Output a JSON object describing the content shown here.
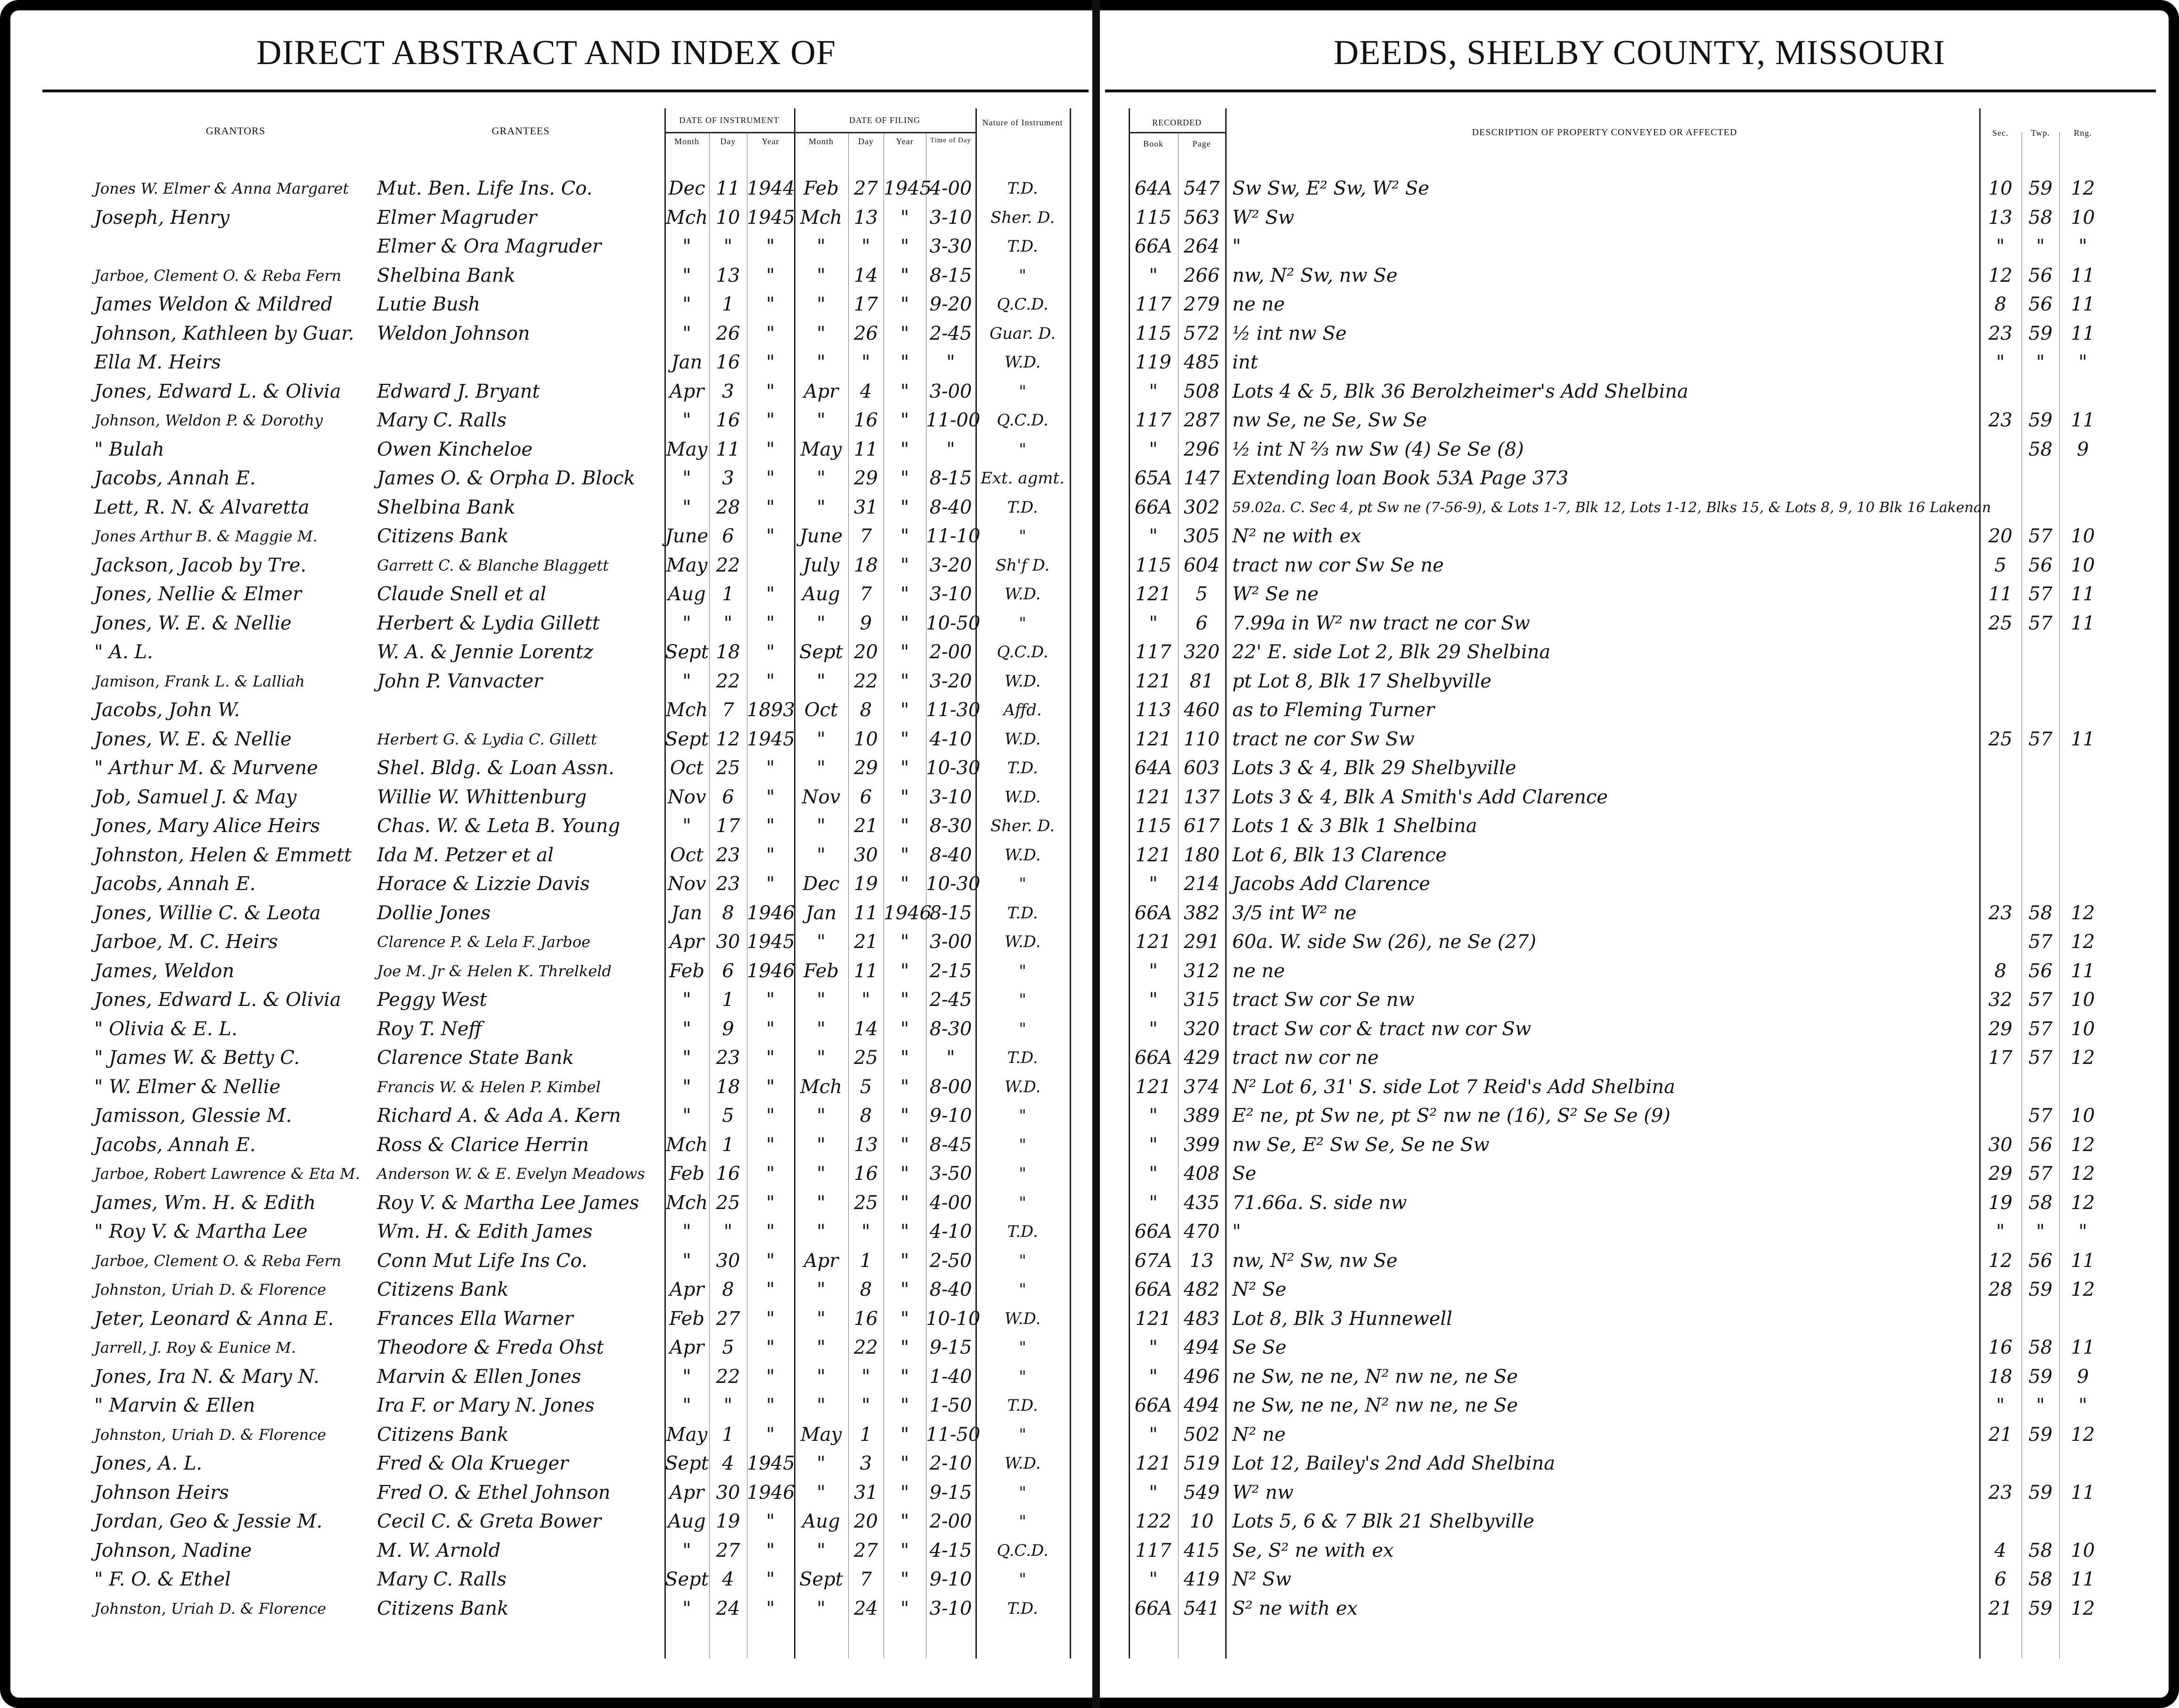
{
  "header": {
    "left_title": "DIRECT ABSTRACT AND INDEX OF",
    "right_title": "DEEDS, SHELBY COUNTY, MISSOURI"
  },
  "columns": {
    "grantors": "GRANTORS",
    "grantees": "GRANTEES",
    "date_of_instrument": "DATE OF INSTRUMENT",
    "date_of_filing": "DATE OF FILING",
    "month": "Month",
    "day": "Day",
    "year": "Year",
    "time_of_day": "Time of Day",
    "nature": "Nature of Instrument",
    "recorded": "RECORDED",
    "book": "Book",
    "page": "Page",
    "description": "DESCRIPTION OF PROPERTY CONVEYED OR AFFECTED",
    "sec": "Sec.",
    "twp": "Twp.",
    "rng": "Rng."
  },
  "rows": [
    [
      "Jones W. Elmer & Anna Margaret",
      "Mut. Ben. Life Ins. Co.",
      "Dec",
      "11",
      "1944",
      "Feb",
      "27",
      "1945",
      "4-00",
      "T.D.",
      "64A",
      "547",
      "Sw Sw, E² Sw, W² Se",
      "10",
      "59",
      "12"
    ],
    [
      "Joseph, Henry",
      "Elmer Magruder",
      "Mch",
      "10",
      "1945",
      "Mch",
      "13",
      "\"",
      "3-10",
      "Sher. D.",
      "115",
      "563",
      "W² Sw",
      "13",
      "58",
      "10"
    ],
    [
      "",
      "Elmer & Ora Magruder",
      "\"",
      "\"",
      "\"",
      "\"",
      "\"",
      "\"",
      "3-30",
      "T.D.",
      "66A",
      "264",
      "\"",
      "\"",
      "\"",
      "\""
    ],
    [
      "Jarboe, Clement O. & Reba Fern",
      "Shelbina Bank",
      "\"",
      "13",
      "\"",
      "\"",
      "14",
      "\"",
      "8-15",
      "\"",
      "\"",
      "266",
      "nw, N² Sw, nw Se",
      "12",
      "56",
      "11"
    ],
    [
      "James Weldon & Mildred",
      "Lutie Bush",
      "\"",
      "1",
      "\"",
      "\"",
      "17",
      "\"",
      "9-20",
      "Q.C.D.",
      "117",
      "279",
      "ne ne",
      "8",
      "56",
      "11"
    ],
    [
      "Johnson, Kathleen by Guar.",
      "Weldon Johnson",
      "\"",
      "26",
      "\"",
      "\"",
      "26",
      "\"",
      "2-45",
      "Guar. D.",
      "115",
      "572",
      "½ int nw Se",
      "23",
      "59",
      "11"
    ],
    [
      "Ella M. Heirs",
      "",
      "Jan",
      "16",
      "\"",
      "\"",
      "\"",
      "\"",
      "\"",
      "W.D.",
      "119",
      "485",
      "int",
      "\"",
      "\"",
      "\""
    ],
    [
      "Jones, Edward L. & Olivia",
      "Edward J. Bryant",
      "Apr",
      "3",
      "\"",
      "Apr",
      "4",
      "\"",
      "3-00",
      "\"",
      "\"",
      "508",
      "Lots 4 & 5, Blk 36 Berolzheimer's Add Shelbina",
      "",
      "",
      ""
    ],
    [
      "Johnson, Weldon P. & Dorothy",
      "Mary C. Ralls",
      "\"",
      "16",
      "\"",
      "\"",
      "16",
      "\"",
      "11-00",
      "Q.C.D.",
      "117",
      "287",
      "nw Se, ne Se, Sw Se",
      "23",
      "59",
      "11"
    ],
    [
      "\" Bulah",
      "Owen Kincheloe",
      "May",
      "11",
      "\"",
      "May",
      "11",
      "\"",
      "\"",
      "\"",
      "\"",
      "296",
      "½ int N ⅔ nw Sw (4) Se Se (8)",
      "",
      "58",
      "9"
    ],
    [
      "Jacobs, Annah E.",
      "James O. & Orpha D. Block",
      "\"",
      "3",
      "\"",
      "\"",
      "29",
      "\"",
      "8-15",
      "Ext. agmt.",
      "65A",
      "147",
      "Extending loan Book 53A Page 373",
      "",
      "",
      ""
    ],
    [
      "Lett, R. N. & Alvaretta",
      "Shelbina Bank",
      "\"",
      "28",
      "\"",
      "\"",
      "31",
      "\"",
      "8-40",
      "T.D.",
      "66A",
      "302",
      "59.02a. C. Sec 4, pt Sw ne (7-56-9), & Lots 1-7, Blk 12, Lots 1-12, Blks 15, & Lots 8, 9, 10 Blk 16 Lakenan",
      "",
      "",
      ""
    ],
    [
      "Jones Arthur B. & Maggie M.",
      "Citizens Bank",
      "June",
      "6",
      "\"",
      "June",
      "7",
      "\"",
      "11-10",
      "\"",
      "\"",
      "305",
      "N² ne with ex",
      "20",
      "57",
      "10"
    ],
    [
      "Jackson, Jacob by Tre.",
      "Garrett C. & Blanche Blaggett",
      "May",
      "22",
      "",
      "July",
      "18",
      "\"",
      "3-20",
      "Sh'f D.",
      "115",
      "604",
      "tract nw cor Sw Se ne",
      "5",
      "56",
      "10"
    ],
    [
      "Jones, Nellie & Elmer",
      "Claude Snell et al",
      "Aug",
      "1",
      "\"",
      "Aug",
      "7",
      "\"",
      "3-10",
      "W.D.",
      "121",
      "5",
      "W² Se ne",
      "11",
      "57",
      "11"
    ],
    [
      "Jones, W. E. & Nellie",
      "Herbert & Lydia Gillett",
      "\"",
      "\"",
      "\"",
      "\"",
      "9",
      "\"",
      "10-50",
      "\"",
      "\"",
      "6",
      "7.99a in W² nw tract ne cor Sw",
      "25",
      "57",
      "11"
    ],
    [
      "\" A. L.",
      "W. A. & Jennie Lorentz",
      "Sept",
      "18",
      "\"",
      "Sept",
      "20",
      "\"",
      "2-00",
      "Q.C.D.",
      "117",
      "320",
      "22' E. side Lot 2, Blk 29 Shelbina",
      "",
      "",
      ""
    ],
    [
      "Jamison, Frank L. & Lalliah",
      "John P. Vanvacter",
      "\"",
      "22",
      "\"",
      "\"",
      "22",
      "\"",
      "3-20",
      "W.D.",
      "121",
      "81",
      "pt Lot 8, Blk 17 Shelbyville",
      "",
      "",
      ""
    ],
    [
      "Jacobs, John W.",
      "",
      "Mch",
      "7",
      "1893",
      "Oct",
      "8",
      "\"",
      "11-30",
      "Affd.",
      "113",
      "460",
      "as to Fleming Turner",
      "",
      "",
      ""
    ],
    [
      "Jones, W. E. & Nellie",
      "Herbert G. & Lydia C. Gillett",
      "Sept",
      "12",
      "1945",
      "\"",
      "10",
      "\"",
      "4-10",
      "W.D.",
      "121",
      "110",
      "tract ne cor Sw Sw",
      "25",
      "57",
      "11"
    ],
    [
      "\" Arthur M. & Murvene",
      "Shel. Bldg. & Loan Assn.",
      "Oct",
      "25",
      "\"",
      "\"",
      "29",
      "\"",
      "10-30",
      "T.D.",
      "64A",
      "603",
      "Lots 3 & 4, Blk 29 Shelbyville",
      "",
      "",
      ""
    ],
    [
      "Job, Samuel J. & May",
      "Willie W. Whittenburg",
      "Nov",
      "6",
      "\"",
      "Nov",
      "6",
      "\"",
      "3-10",
      "W.D.",
      "121",
      "137",
      "Lots 3 & 4, Blk A Smith's Add Clarence",
      "",
      "",
      ""
    ],
    [
      "Jones, Mary Alice Heirs",
      "Chas. W. & Leta B. Young",
      "\"",
      "17",
      "\"",
      "\"",
      "21",
      "\"",
      "8-30",
      "Sher. D.",
      "115",
      "617",
      "Lots 1 & 3 Blk 1 Shelbina",
      "",
      "",
      ""
    ],
    [
      "Johnston, Helen & Emmett",
      "Ida M. Petzer et al",
      "Oct",
      "23",
      "\"",
      "\"",
      "30",
      "\"",
      "8-40",
      "W.D.",
      "121",
      "180",
      "Lot 6, Blk 13 Clarence",
      "",
      "",
      ""
    ],
    [
      "Jacobs, Annah E.",
      "Horace & Lizzie Davis",
      "Nov",
      "23",
      "\"",
      "Dec",
      "19",
      "\"",
      "10-30",
      "\"",
      "\"",
      "214",
      "Jacobs Add Clarence",
      "",
      "",
      ""
    ],
    [
      "Jones, Willie C. & Leota",
      "Dollie Jones",
      "Jan",
      "8",
      "1946",
      "Jan",
      "11",
      "1946",
      "8-15",
      "T.D.",
      "66A",
      "382",
      "3/5 int W² ne",
      "23",
      "58",
      "12"
    ],
    [
      "Jarboe, M. C. Heirs",
      "Clarence P. & Lela F. Jarboe",
      "Apr",
      "30",
      "1945",
      "\"",
      "21",
      "\"",
      "3-00",
      "W.D.",
      "121",
      "291",
      "60a. W. side Sw (26), ne Se (27)",
      "",
      "57",
      "12"
    ],
    [
      "James, Weldon",
      "Joe M. Jr & Helen K. Threlkeld",
      "Feb",
      "6",
      "1946",
      "Feb",
      "11",
      "\"",
      "2-15",
      "\"",
      "\"",
      "312",
      "ne ne",
      "8",
      "56",
      "11"
    ],
    [
      "Jones, Edward L. & Olivia",
      "Peggy West",
      "\"",
      "1",
      "\"",
      "\"",
      "\"",
      "\"",
      "2-45",
      "\"",
      "\"",
      "315",
      "tract Sw cor Se nw",
      "32",
      "57",
      "10"
    ],
    [
      "\" Olivia & E. L.",
      "Roy T. Neff",
      "\"",
      "9",
      "\"",
      "\"",
      "14",
      "\"",
      "8-30",
      "\"",
      "\"",
      "320",
      "tract Sw cor & tract nw cor Sw",
      "29",
      "57",
      "10"
    ],
    [
      "\" James W. & Betty C.",
      "Clarence State Bank",
      "\"",
      "23",
      "\"",
      "\"",
      "25",
      "\"",
      "\"",
      "T.D.",
      "66A",
      "429",
      "tract nw cor ne",
      "17",
      "57",
      "12"
    ],
    [
      "\" W. Elmer & Nellie",
      "Francis W. & Helen P. Kimbel",
      "\"",
      "18",
      "\"",
      "Mch",
      "5",
      "\"",
      "8-00",
      "W.D.",
      "121",
      "374",
      "N² Lot 6, 31' S. side Lot 7 Reid's Add Shelbina",
      "",
      "",
      ""
    ],
    [
      "Jamisson, Glessie M.",
      "Richard A. & Ada A. Kern",
      "\"",
      "5",
      "\"",
      "\"",
      "8",
      "\"",
      "9-10",
      "\"",
      "\"",
      "389",
      "E² ne, pt Sw ne, pt S² nw ne (16), S² Se Se (9)",
      "",
      "57",
      "10"
    ],
    [
      "Jacobs, Annah E.",
      "Ross & Clarice Herrin",
      "Mch",
      "1",
      "\"",
      "\"",
      "13",
      "\"",
      "8-45",
      "\"",
      "\"",
      "399",
      "nw Se, E² Sw Se, Se ne Sw",
      "30",
      "56",
      "12"
    ],
    [
      "Jarboe, Robert Lawrence & Eta M.",
      "Anderson W. & E. Evelyn Meadows",
      "Feb",
      "16",
      "\"",
      "\"",
      "16",
      "\"",
      "3-50",
      "\"",
      "\"",
      "408",
      "Se",
      "29",
      "57",
      "12"
    ],
    [
      "James, Wm. H. & Edith",
      "Roy V. & Martha Lee James",
      "Mch",
      "25",
      "\"",
      "\"",
      "25",
      "\"",
      "4-00",
      "\"",
      "\"",
      "435",
      "71.66a. S. side nw",
      "19",
      "58",
      "12"
    ],
    [
      "\" Roy V. & Martha Lee",
      "Wm. H. & Edith James",
      "\"",
      "\"",
      "\"",
      "\"",
      "\"",
      "\"",
      "4-10",
      "T.D.",
      "66A",
      "470",
      "\"",
      "\"",
      "\"",
      "\""
    ],
    [
      "Jarboe, Clement O. & Reba Fern",
      "Conn Mut Life Ins Co.",
      "\"",
      "30",
      "\"",
      "Apr",
      "1",
      "\"",
      "2-50",
      "\"",
      "67A",
      "13",
      "nw, N² Sw, nw Se",
      "12",
      "56",
      "11"
    ],
    [
      "Johnston, Uriah D. & Florence",
      "Citizens Bank",
      "Apr",
      "8",
      "\"",
      "\"",
      "8",
      "\"",
      "8-40",
      "\"",
      "66A",
      "482",
      "N² Se",
      "28",
      "59",
      "12"
    ],
    [
      "Jeter, Leonard & Anna E.",
      "Frances Ella Warner",
      "Feb",
      "27",
      "\"",
      "\"",
      "16",
      "\"",
      "10-10",
      "W.D.",
      "121",
      "483",
      "Lot 8, Blk 3 Hunnewell",
      "",
      "",
      ""
    ],
    [
      "Jarrell, J. Roy & Eunice M.",
      "Theodore & Freda Ohst",
      "Apr",
      "5",
      "\"",
      "\"",
      "22",
      "\"",
      "9-15",
      "\"",
      "\"",
      "494",
      "Se Se",
      "16",
      "58",
      "11"
    ],
    [
      "Jones, Ira N. & Mary N.",
      "Marvin & Ellen Jones",
      "\"",
      "22",
      "\"",
      "\"",
      "\"",
      "\"",
      "1-40",
      "\"",
      "\"",
      "496",
      "ne Sw, ne ne, N² nw ne, ne Se",
      "18",
      "59",
      "9"
    ],
    [
      "\" Marvin & Ellen",
      "Ira F. or Mary N. Jones",
      "\"",
      "\"",
      "\"",
      "\"",
      "\"",
      "\"",
      "1-50",
      "T.D.",
      "66A",
      "494",
      "ne Sw, ne ne, N² nw ne, ne Se",
      "\"",
      "\"",
      "\""
    ],
    [
      "Johnston, Uriah D. & Florence",
      "Citizens Bank",
      "May",
      "1",
      "\"",
      "May",
      "1",
      "\"",
      "11-50",
      "\"",
      "\"",
      "502",
      "N² ne",
      "21",
      "59",
      "12"
    ],
    [
      "Jones, A. L.",
      "Fred & Ola Krueger",
      "Sept",
      "4",
      "1945",
      "\"",
      "3",
      "\"",
      "2-10",
      "W.D.",
      "121",
      "519",
      "Lot 12, Bailey's 2nd Add Shelbina",
      "",
      "",
      ""
    ],
    [
      "Johnson Heirs",
      "Fred O. & Ethel Johnson",
      "Apr",
      "30",
      "1946",
      "\"",
      "31",
      "\"",
      "9-15",
      "\"",
      "\"",
      "549",
      "W² nw",
      "23",
      "59",
      "11"
    ],
    [
      "Jordan, Geo & Jessie M.",
      "Cecil C. & Greta Bower",
      "Aug",
      "19",
      "\"",
      "Aug",
      "20",
      "\"",
      "2-00",
      "\"",
      "122",
      "10",
      "Lots 5, 6 & 7 Blk 21 Shelbyville",
      "",
      "",
      ""
    ],
    [
      "Johnson, Nadine",
      "M. W. Arnold",
      "\"",
      "27",
      "\"",
      "\"",
      "27",
      "\"",
      "4-15",
      "Q.C.D.",
      "117",
      "415",
      "Se, S² ne with ex",
      "4",
      "58",
      "10"
    ],
    [
      "\" F. O. & Ethel",
      "Mary C. Ralls",
      "Sept",
      "4",
      "\"",
      "Sept",
      "7",
      "\"",
      "9-10",
      "\"",
      "\"",
      "419",
      "N² Sw",
      "6",
      "58",
      "11"
    ],
    [
      "Johnston, Uriah D. & Florence",
      "Citizens Bank",
      "\"",
      "24",
      "\"",
      "\"",
      "24",
      "\"",
      "3-10",
      "T.D.",
      "66A",
      "541",
      "S² ne with ex",
      "21",
      "59",
      "12"
    ]
  ]
}
